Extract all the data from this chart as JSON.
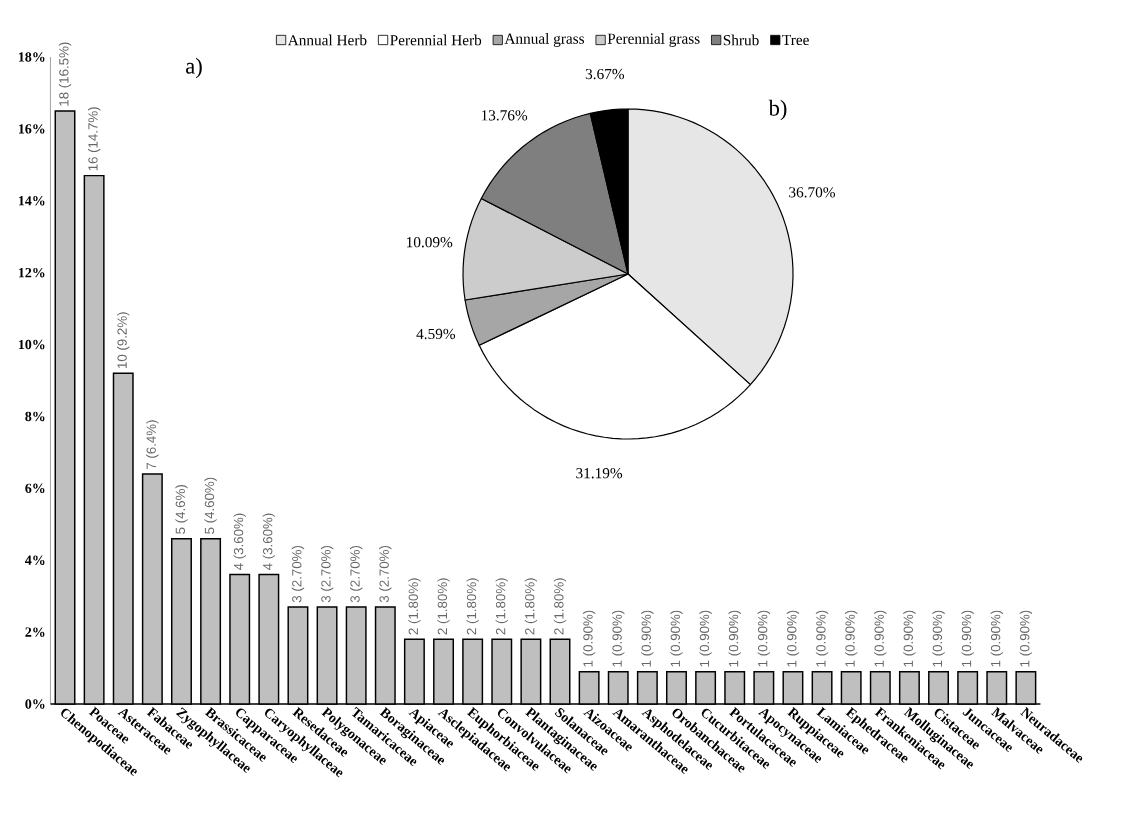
{
  "chart_data": [
    {
      "type": "bar",
      "title": "a)",
      "categories": [
        "Chenopodiaceae",
        "Poaceae",
        "Asteraceae",
        "Fabaceae",
        "Zygophyllaceae",
        "Brassicaceae",
        "Capparaceae",
        "Caryophyllaceae",
        "Resedaceae",
        "Polygonaceae",
        "Tamaricaceae",
        "Boraginaceae",
        "Apiaceae",
        "Asclepiadaceae",
        "Euphorbiaceae",
        "Convolvulaceae",
        "Plantaginaceae",
        "Solanaceae",
        "Aizoaceae",
        "Amaranthaceae",
        "Asphodelaceae",
        "Orobanchaceae",
        "Cucurbitaceae",
        "Portulacaceae",
        "Apocynaceae",
        "Ruppiaceae",
        "Lamiaceae",
        "Ephedraceae",
        "Frankeniaceae",
        "Molluginaceae",
        "Cistaceae",
        "Juncaceae",
        "Malvaceae",
        "Neuradaceae"
      ],
      "values": [
        16.5,
        14.7,
        9.2,
        6.4,
        4.6,
        4.6,
        3.6,
        3.6,
        2.7,
        2.7,
        2.7,
        2.7,
        1.8,
        1.8,
        1.8,
        1.8,
        1.8,
        1.8,
        0.9,
        0.9,
        0.9,
        0.9,
        0.9,
        0.9,
        0.9,
        0.9,
        0.9,
        0.9,
        0.9,
        0.9,
        0.9,
        0.9,
        0.9,
        0.9
      ],
      "value_labels": [
        "18 (16.5%)",
        "16 (14.7%)",
        "10 (9.2%)",
        "7 (6.4%)",
        "5 (4.6%)",
        "5 (4.60%)",
        "4 (3.60%)",
        "4 (3.60%)",
        "3 (2.70%)",
        "3 (2.70%)",
        "3 (2.70%)",
        "3 (2.70%)",
        "2 (1.80%)",
        "2 (1.80%)",
        "2 (1.80%)",
        "2 (1.80%)",
        "2 (1.80%)",
        "2 (1.80%)",
        "1 (0.90%)",
        "1 (0.90%)",
        "1 (0.90%)",
        "1 (0.90%)",
        "1 (0.90%)",
        "1 (0.90%)",
        "1 (0.90%)",
        "1 (0.90%)",
        "1 (0.90%)",
        "1 (0.90%)",
        "1 (0.90%)",
        "1 (0.90%)",
        "1 (0.90%)",
        "1 (0.90%)",
        "1 (0.90%)",
        "1 (0.90%)"
      ],
      "color": "#bfbfbf",
      "ylim": [
        0,
        18
      ],
      "yticks": [
        {
          "value": 0,
          "label": "0%"
        },
        {
          "value": 2,
          "label": "2%"
        },
        {
          "value": 4,
          "label": "4%"
        },
        {
          "value": 6,
          "label": "6%"
        },
        {
          "value": 8,
          "label": "8%"
        },
        {
          "value": 10,
          "label": "10%"
        },
        {
          "value": 12,
          "label": "12%"
        },
        {
          "value": 14,
          "label": "14%"
        },
        {
          "value": 16,
          "label": "16%"
        },
        {
          "value": 18,
          "label": "18%"
        }
      ]
    },
    {
      "type": "pie",
      "title": "b)",
      "categories": [
        "Annual Herb",
        "Perennial Herb",
        "Annual grass",
        "Perennial grass",
        "Shrub",
        "Tree"
      ],
      "values": [
        36.7,
        31.19,
        4.59,
        10.09,
        13.76,
        3.67
      ],
      "value_labels": [
        "36.70%",
        "31.19%",
        "4.59%",
        "10.09%",
        "13.76%",
        "3.67%"
      ],
      "colors": [
        "#e6e6e6",
        "#ffffff",
        "#a6a6a6",
        "#cccccc",
        "#7f7f7f",
        "#000000"
      ],
      "legend": "top"
    }
  ]
}
